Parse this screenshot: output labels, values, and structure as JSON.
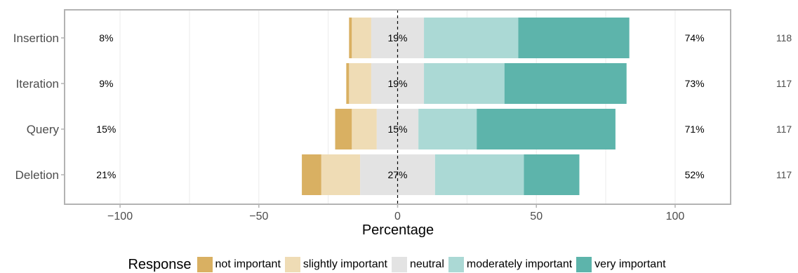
{
  "chart_data": {
    "type": "bar",
    "subtype": "diverging-stacked-likert",
    "xlabel": "Percentage",
    "xlim": [
      -120,
      120
    ],
    "xticks": [
      -100,
      -50,
      0,
      50,
      100
    ],
    "xtick_labels": [
      "−100",
      "−50",
      "0",
      "50",
      "100"
    ],
    "grid": true,
    "legend_position": "bottom",
    "legend_title": "Response",
    "categories": [
      "Insertion",
      "Iteration",
      "Query",
      "Deletion"
    ],
    "levels": [
      "not important",
      "slightly important",
      "neutral",
      "moderately important",
      "very important"
    ],
    "colors": {
      "not important": "#d9b062",
      "slightly important": "#efdcb5",
      "neutral": "#e3e3e3",
      "moderately important": "#abd9d5",
      "very important": "#5db4ab"
    },
    "series": [
      {
        "name": "not important",
        "values": [
          1,
          1,
          6,
          7
        ]
      },
      {
        "name": "slightly important",
        "values": [
          7,
          8,
          9,
          14
        ]
      },
      {
        "name": "neutral",
        "values": [
          19,
          19,
          15,
          27
        ]
      },
      {
        "name": "moderately important",
        "values": [
          34,
          29,
          21,
          32
        ]
      },
      {
        "name": "very important",
        "values": [
          40,
          44,
          50,
          20
        ]
      }
    ],
    "low_percent_labels": [
      "8%",
      "9%",
      "15%",
      "21%"
    ],
    "neutral_percent_labels": [
      "19%",
      "19%",
      "15%",
      "27%"
    ],
    "high_percent_labels": [
      "74%",
      "73%",
      "71%",
      "52%"
    ],
    "counts": [
      "118",
      "117",
      "117",
      "117"
    ]
  }
}
